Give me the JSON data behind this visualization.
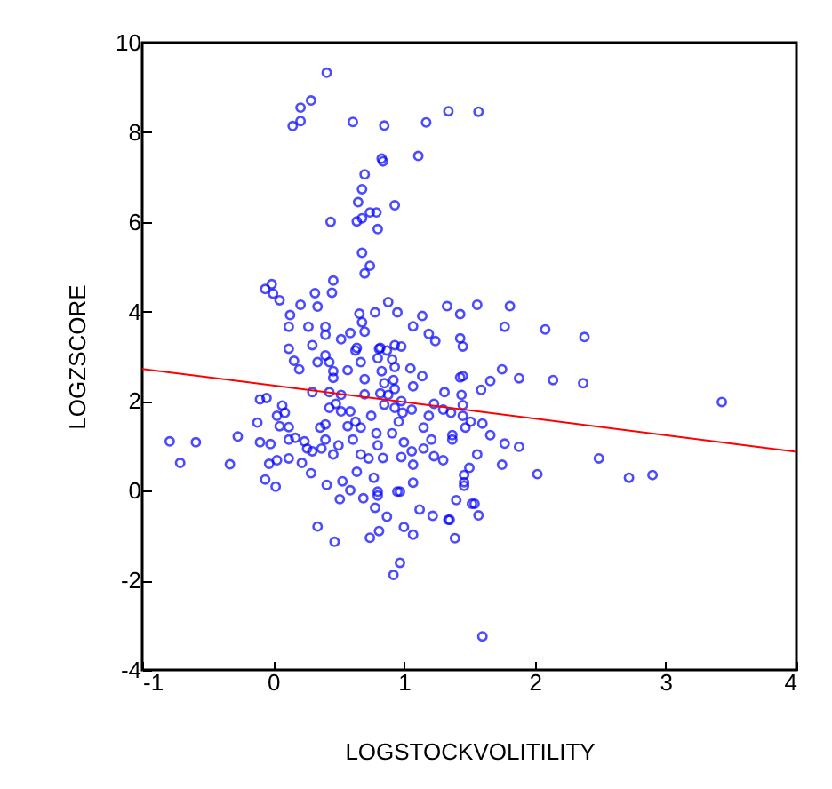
{
  "chart_data": {
    "type": "scatter",
    "xlabel": "LOGSTOCKVOLITILITY",
    "ylabel": "LOGZSCORE",
    "xlim": [
      -1,
      4
    ],
    "ylim": [
      -4,
      10
    ],
    "xticks": [
      -1,
      0,
      1,
      2,
      3,
      4
    ],
    "yticks": [
      -4,
      -2,
      0,
      2,
      4,
      6,
      8,
      10
    ],
    "series": [
      {
        "color": "#0000ff",
        "marker": "circle",
        "x": [
          0.41,
          0.29,
          0.21,
          0.21,
          0.15,
          0.61,
          0.85,
          1.17,
          1.34,
          1.57,
          0.83,
          0.84,
          1.11,
          0.7,
          0.68,
          0.65,
          0.74,
          0.79,
          0.93,
          0.68,
          0.64,
          0.44,
          0.8,
          0.68,
          0.74,
          0.7,
          0.46,
          0.45,
          -0.01,
          -0.06,
          0.0,
          0.05,
          0.32,
          0.21,
          0.34,
          0.88,
          1.33,
          1.43,
          0.13,
          0.12,
          0.27,
          0.4,
          0.66,
          0.78,
          0.95,
          1.14,
          1.07,
          0.68,
          0.59,
          0.7,
          0.4,
          0.52,
          1.19,
          1.24,
          1.43,
          1.45,
          0.12,
          0.3,
          0.64,
          0.81,
          0.93,
          0.98,
          1.56,
          1.81,
          1.77,
          2.08,
          2.38,
          -0.79,
          -0.71,
          -0.59,
          -0.33,
          -0.27,
          -0.12,
          -0.1,
          -0.05,
          -0.1,
          -0.02,
          -0.03,
          0.03,
          0.07,
          0.09,
          0.05,
          0.12,
          0.12,
          0.17,
          0.12,
          0.03,
          0.16,
          0.2,
          0.3,
          0.24,
          0.26,
          0.22,
          0.29,
          0.34,
          0.4,
          0.43,
          0.46,
          0.46,
          0.43,
          0.43,
          0.4,
          0.36,
          0.4,
          0.37,
          0.3,
          0.46,
          0.5,
          0.48,
          0.52,
          0.52,
          0.57,
          0.63,
          0.67,
          0.59,
          0.63,
          0.57,
          0.61,
          0.67,
          0.67,
          0.73,
          0.64,
          0.7,
          0.7,
          0.75,
          0.79,
          0.8,
          0.84,
          0.82,
          0.87,
          0.8,
          0.91,
          0.83,
          0.93,
          0.85,
          0.92,
          0.82,
          0.88,
          0.93,
          0.85,
          0.93,
          0.98,
          0.99,
          1.06,
          1.05,
          1.14,
          1.07,
          0.96,
          0.91,
          1.0,
          0.98,
          1.06,
          1.07,
          1.15,
          1.19,
          1.23,
          1.31,
          1.3,
          1.21,
          1.15,
          1.23,
          1.3,
          1.36,
          1.45,
          1.47,
          1.43,
          1.44,
          1.37,
          1.46,
          1.46,
          0.95,
          0.8,
          1.75,
          1.88,
          2.14,
          2.37,
          1.66,
          1.59,
          1.45,
          3.43,
          1.45,
          1.51,
          1.6,
          1.66,
          1.37,
          1.77,
          1.88,
          1.56,
          1.75,
          2.02,
          2.49,
          2.72,
          2.9,
          1.5,
          1.46,
          1.4,
          1.54,
          1.34,
          1.57,
          1.39,
          1.6,
          -0.06,
          0.02,
          0.41,
          0.51,
          0.53,
          0.59,
          0.69,
          0.77,
          0.78,
          0.8,
          0.87,
          0.34,
          0.47,
          0.74,
          0.81,
          0.97,
          1.0,
          1.07,
          0.97,
          0.92,
          1.12,
          1.22,
          1.35,
          1.52,
          1.07
        ],
        "values": [
          9.33,
          8.71,
          8.55,
          8.25,
          8.14,
          8.23,
          8.15,
          8.22,
          8.47,
          8.46,
          7.41,
          7.35,
          7.47,
          7.06,
          6.73,
          6.44,
          6.21,
          6.21,
          6.37,
          6.08,
          6.01,
          6.0,
          5.84,
          5.31,
          5.02,
          4.85,
          4.69,
          4.42,
          4.61,
          4.5,
          4.4,
          4.25,
          4.41,
          4.15,
          4.11,
          4.21,
          4.12,
          3.94,
          3.92,
          3.66,
          3.66,
          3.66,
          3.95,
          3.98,
          3.98,
          3.9,
          3.67,
          3.76,
          3.52,
          3.55,
          3.48,
          3.38,
          3.5,
          3.34,
          3.4,
          3.22,
          3.17,
          3.25,
          3.19,
          3.17,
          3.25,
          3.22,
          4.15,
          4.12,
          3.66,
          3.6,
          3.43,
          1.1,
          0.62,
          1.08,
          0.59,
          1.21,
          1.52,
          2.04,
          2.07,
          1.08,
          1.04,
          0.6,
          1.67,
          1.9,
          1.74,
          1.44,
          1.42,
          1.14,
          1.18,
          0.72,
          0.68,
          2.9,
          2.71,
          2.2,
          1.1,
          0.94,
          0.62,
          0.39,
          2.87,
          3.02,
          2.87,
          2.67,
          2.52,
          2.2,
          1.85,
          1.48,
          1.41,
          1.14,
          0.94,
          0.88,
          0.81,
          1.01,
          1.94,
          2.14,
          1.77,
          2.69,
          3.13,
          2.87,
          1.77,
          1.54,
          1.44,
          1.14,
          1.41,
          0.81,
          0.72,
          0.42,
          2.15,
          2.49,
          1.67,
          1.28,
          1.01,
          0.73,
          3.19,
          3.13,
          2.96,
          2.93,
          2.67,
          2.76,
          2.4,
          2.47,
          2.17,
          2.14,
          2.27,
          1.92,
          1.85,
          2.0,
          1.74,
          1.81,
          2.73,
          2.56,
          2.33,
          1.54,
          1.28,
          1.08,
          0.75,
          0.88,
          0.58,
          1.41,
          1.67,
          1.94,
          2.2,
          1.81,
          1.14,
          0.94,
          0.77,
          0.68,
          1.74,
          1.67,
          1.41,
          2.53,
          2.14,
          1.14,
          0.35,
          0.11,
          -0.02,
          -0.02,
          2.71,
          2.51,
          2.47,
          2.4,
          2.45,
          2.25,
          2.56,
          1.98,
          1.91,
          1.54,
          1.5,
          1.24,
          1.24,
          1.05,
          0.98,
          0.81,
          0.58,
          0.37,
          0.72,
          0.29,
          0.35,
          0.51,
          0.19,
          -0.21,
          -0.29,
          -0.65,
          -0.55,
          -1.06,
          -3.25,
          0.25,
          0.09,
          0.13,
          -0.19,
          0.21,
          0.01,
          -0.17,
          0.29,
          -0.38,
          -0.11,
          -0.58,
          -0.8,
          -1.14,
          -1.05,
          -0.9,
          -0.02,
          -0.81,
          -0.98,
          -1.61,
          -1.88,
          -0.42,
          -0.56,
          -0.65,
          -0.29,
          0.18
        ]
      },
      {
        "type": "line",
        "color": "#ff0000",
        "x": [
          -1,
          4
        ],
        "values": [
          2.72,
          0.87
        ]
      }
    ]
  }
}
